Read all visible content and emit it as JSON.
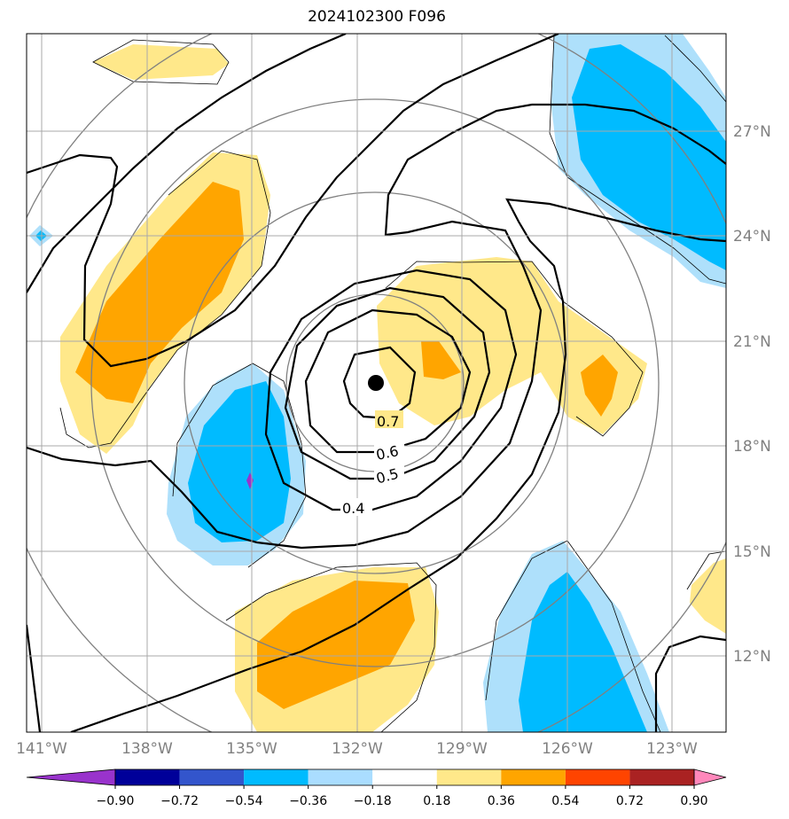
{
  "title": "2024102300 F096",
  "longitude_labels": [
    "141°W",
    "138°W",
    "135°W",
    "132°W",
    "129°W",
    "126°W",
    "123°W"
  ],
  "latitude_labels": [
    "27°N",
    "24°N",
    "21°N",
    "18°N",
    "15°N",
    "12°N"
  ],
  "contour_labels": [
    "0.7",
    "0.6",
    "0.5",
    "0.4"
  ],
  "colorbar": {
    "ticks": [
      "−0.90",
      "−0.72",
      "−0.54",
      "−0.36",
      "−0.18",
      "0.18",
      "0.36",
      "0.54",
      "0.72",
      "0.90"
    ],
    "colors": [
      "#9933cc",
      "#000099",
      "#3355cc",
      "#00bbff",
      "#aaddff",
      "#ffffff",
      "#ffe88a",
      "#ffa500",
      "#ff4400",
      "#aa2222",
      "#ff88bb"
    ]
  },
  "center_marker": "storm-center-dot",
  "fill_colors": {
    "light_yellow": "#ffe88a",
    "orange": "#ffa500",
    "light_blue": "#aee0fb",
    "cyan": "#00bbff",
    "purple": "#9933cc"
  }
}
